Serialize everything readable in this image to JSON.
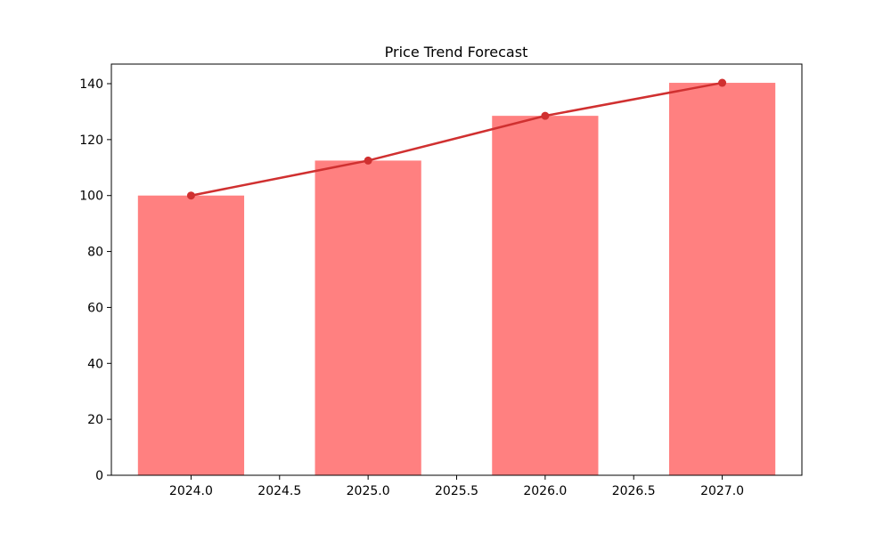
{
  "chart_data": {
    "type": "bar",
    "title": "Price Trend Forecast",
    "xlabel": "",
    "ylabel": "",
    "x": [
      2024,
      2025,
      2026,
      2027
    ],
    "bars": {
      "values": [
        100,
        112.5,
        128.5,
        140.3
      ],
      "color": "#ff8080"
    },
    "line": {
      "values": [
        100,
        112.5,
        128.5,
        140.3
      ],
      "color": "#d03030",
      "marker": "circle"
    },
    "bar_width": 0.6,
    "xlim": [
      2023.55,
      2027.45
    ],
    "ylim": [
      0,
      147
    ],
    "xticks": [
      "2024.0",
      "2024.5",
      "2025.0",
      "2025.5",
      "2026.0",
      "2026.5",
      "2027.0"
    ],
    "xtick_values": [
      2024.0,
      2024.5,
      2025.0,
      2025.5,
      2026.0,
      2026.5,
      2027.0
    ],
    "yticks": [
      "0",
      "20",
      "40",
      "60",
      "80",
      "100",
      "120",
      "140"
    ],
    "ytick_values": [
      0,
      20,
      40,
      60,
      80,
      100,
      120,
      140
    ],
    "grid": false,
    "legend": "none"
  }
}
